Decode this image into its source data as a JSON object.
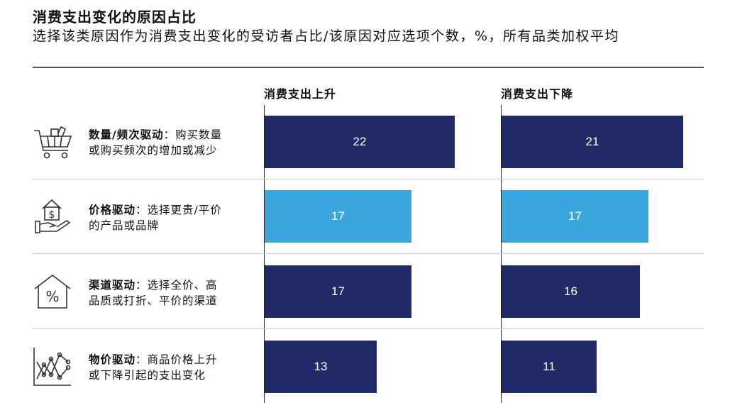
{
  "title": "消费支出变化的原因占比",
  "subtitle": "选择该类原因作为消费支出变化的受访者占比/该原因对应选项个数，%，所有品类加权平均",
  "colors": {
    "dark": "#1f2a66",
    "light": "#3aa6dc"
  },
  "chart_data": {
    "type": "bar",
    "categories": [
      "数量/频次驱动",
      "价格驱动",
      "渠道驱动",
      "物价驱动"
    ],
    "series": [
      {
        "name": "消费支出上升",
        "values": [
          22,
          17,
          17,
          13
        ]
      },
      {
        "name": "消费支出下降",
        "values": [
          21,
          17,
          16,
          11
        ]
      }
    ],
    "highlight_index": 1
  },
  "rows": [
    {
      "icon": "shopping-cart-icon",
      "label_bold": "数量/频次驱动",
      "label_desc_1": "：购买数量",
      "label_desc_2": "或购买频次的增加或减少"
    },
    {
      "icon": "hand-house-dollar-icon",
      "label_bold": "价格驱动",
      "label_desc_1": "：选择更贵/平价",
      "label_desc_2": "的产品或品牌"
    },
    {
      "icon": "house-percent-icon",
      "label_bold": "渠道驱动",
      "label_desc_1": "：选择全价、高",
      "label_desc_2": "品质或打折、平价的渠道"
    },
    {
      "icon": "price-trend-icon",
      "label_bold": "物价驱动",
      "label_desc_1": "：商品价格上升",
      "label_desc_2": "或下降引起的支出变化"
    }
  ]
}
